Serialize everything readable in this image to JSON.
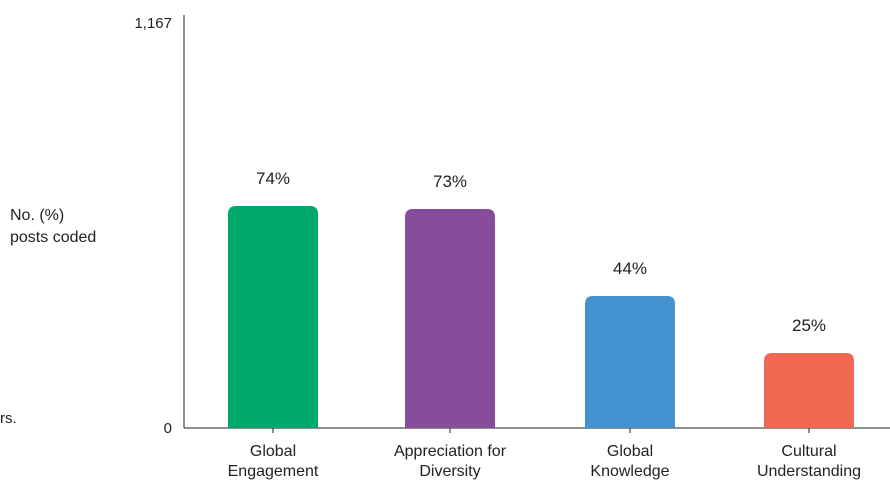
{
  "chart_data": {
    "type": "bar",
    "ylabel_lines": [
      "No. (%)",
      "posts coded"
    ],
    "ylim": [
      0,
      1167
    ],
    "ytick_labels": [
      "0",
      "1,167"
    ],
    "categories": [
      [
        "Global",
        "Engagement"
      ],
      [
        "Appreciation for",
        "Diversity"
      ],
      [
        "Global",
        "Knowledge"
      ],
      [
        "Cultural",
        "Understanding"
      ]
    ],
    "percent_values": [
      74,
      73,
      44,
      25
    ],
    "data_labels": [
      "74%",
      "73%",
      "44%",
      "25%"
    ],
    "colors": [
      "#00A86B",
      "#874C9C",
      "#4592D0",
      "#EF6852"
    ],
    "grid": false,
    "legend": "none"
  },
  "cut_note": "rs."
}
